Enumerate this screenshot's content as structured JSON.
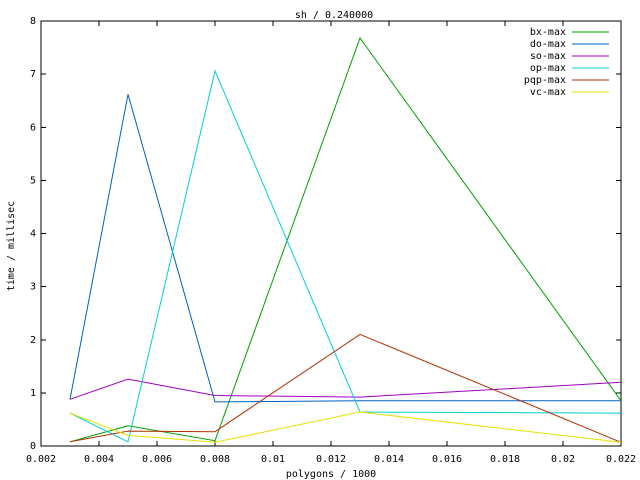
{
  "chart_data": {
    "type": "line",
    "title": "sh / 0.240000",
    "xlabel": "polygons / 1000",
    "ylabel": "time / millisec",
    "xlim": [
      0.002,
      0.022
    ],
    "ylim": [
      0,
      8
    ],
    "xticks": [
      0.002,
      0.004,
      0.006,
      0.008,
      0.01,
      0.012,
      0.014,
      0.016,
      0.018,
      0.02,
      0.022
    ],
    "xtick_labels": [
      "0.002",
      "0.004",
      "0.006",
      "0.008",
      "0.01",
      "0.012",
      "0.014",
      "0.016",
      "0.018",
      "0.02",
      "0.022"
    ],
    "yticks": [
      0,
      1,
      2,
      3,
      4,
      5,
      6,
      7,
      8
    ],
    "ytick_labels": [
      "0",
      "1",
      "2",
      "3",
      "4",
      "5",
      "6",
      "7",
      "8"
    ],
    "grid": false,
    "legend_position": "top-right",
    "x": [
      0.003,
      0.005,
      0.008,
      0.013,
      0.022
    ],
    "series": [
      {
        "name": "bx-max",
        "color": "#00a000",
        "values": [
          0.08,
          0.38,
          0.1,
          7.68,
          0.85
        ]
      },
      {
        "name": "do-max",
        "color": "#0060c0",
        "values": [
          0.88,
          6.62,
          0.83,
          0.85,
          0.85
        ]
      },
      {
        "name": "so-max",
        "color": "#a000c0",
        "values": [
          0.88,
          1.26,
          0.95,
          0.92,
          1.2
        ]
      },
      {
        "name": "op-max",
        "color": "#00d0d8",
        "values": [
          0.62,
          0.08,
          7.06,
          0.64,
          0.62
        ]
      },
      {
        "name": "pqp-max",
        "color": "#b03000",
        "values": [
          0.08,
          0.28,
          0.27,
          2.1,
          0.07
        ]
      },
      {
        "name": "vc-max",
        "color": "#e8e000",
        "values": [
          0.62,
          0.2,
          0.07,
          0.64,
          0.07
        ]
      }
    ]
  }
}
